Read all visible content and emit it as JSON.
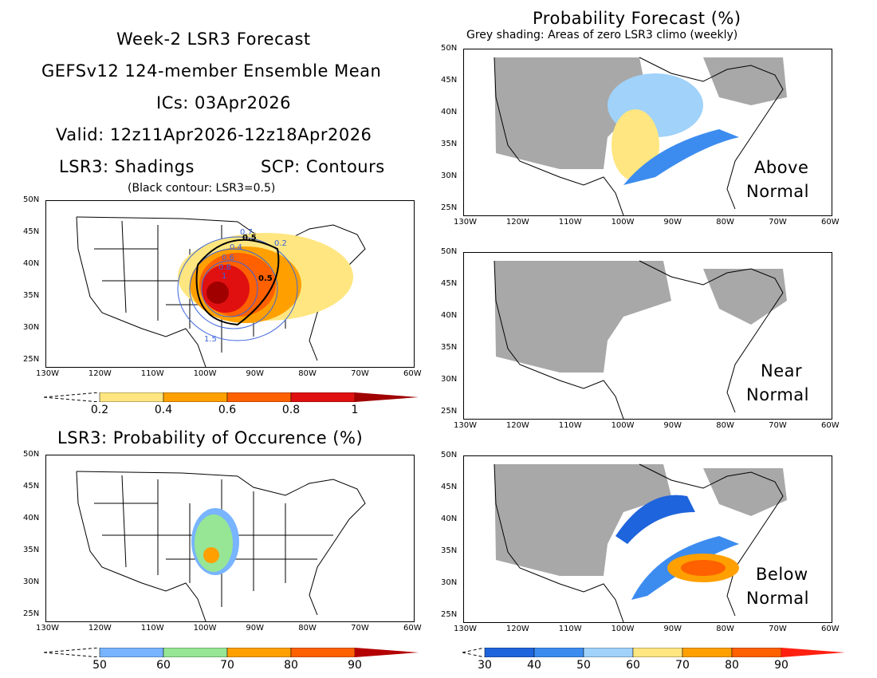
{
  "left_title": {
    "line1": "Week-2 LSR3 Forecast",
    "line2": "GEFSv12 124-member Ensemble Mean",
    "line3": "ICs: 03Apr2026",
    "line4": "Valid: 12z11Apr2026-12z18Apr2026",
    "shadings": "LSR3: Shadings",
    "contours": "SCP: Contours",
    "note": "(Black contour: LSR3=0.5)"
  },
  "right_title": {
    "main": "Probability Forecast (%)",
    "note": "Grey shading: Areas of zero LSR3 climo (weekly)"
  },
  "prob_title": "LSR3: Probability of Occurence (%)",
  "lat_labels": [
    "50N",
    "45N",
    "40N",
    "35N",
    "30N",
    "25N"
  ],
  "lon_labels": [
    "130W",
    "120W",
    "110W",
    "100W",
    "90W",
    "80W",
    "70W",
    "60W"
  ],
  "panel_labels": {
    "above": [
      "Above",
      "Normal"
    ],
    "near": [
      "Near",
      "Normal"
    ],
    "below": [
      "Below",
      "Normal"
    ]
  },
  "contour_labels": {
    "c05a": "0.5",
    "c05b": "0.5",
    "c02": "0.2",
    "c04": "0.4",
    "c06": "0.6",
    "c08": "0.8",
    "c1": "1",
    "c07": "0.7",
    "c15": "1.5"
  },
  "colorbars": {
    "lsr": {
      "labels": [
        "0.2",
        "0.4",
        "0.6",
        "0.8",
        "1"
      ],
      "colors": [
        "#ffe680",
        "#ffa000",
        "#ff6000",
        "#e01010",
        "#a00000"
      ]
    },
    "occ": {
      "labels": [
        "50",
        "60",
        "70",
        "80",
        "90"
      ],
      "colors": [
        "#78b4ff",
        "#96e696",
        "#ffa000",
        "#ff6000",
        "#b40000"
      ]
    },
    "tri": {
      "labels": [
        "30",
        "40",
        "50",
        "60",
        "70",
        "80",
        "90"
      ],
      "colors": [
        "#1e64dc",
        "#3c8cf0",
        "#a0d2fa",
        "#ffe680",
        "#ffa000",
        "#ff6000",
        "#ff2010"
      ]
    }
  },
  "colors": {
    "grey": "#a8a8a8",
    "contour_blue": "#3c64dc",
    "frame": "#000000"
  }
}
